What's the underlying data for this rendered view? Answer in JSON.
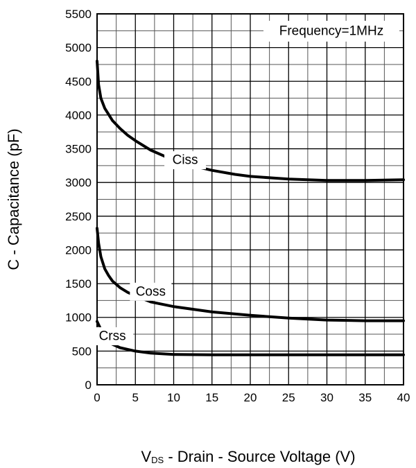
{
  "chart_data": {
    "type": "line",
    "annotation": "Frequency=1MHz",
    "xlabel_prefix": "V",
    "xlabel_subscript": "DS",
    "xlabel_rest": " - Drain - Source Voltage (V)",
    "ylabel": "C - Capacitance (pF)",
    "xlim": [
      0,
      40
    ],
    "ylim": [
      0,
      5500
    ],
    "xticks": [
      0,
      5,
      10,
      15,
      20,
      25,
      30,
      35,
      40
    ],
    "yticks": [
      0,
      500,
      1000,
      1500,
      2000,
      2500,
      3000,
      3500,
      4000,
      4500,
      5000,
      5500
    ],
    "grid": true,
    "series": [
      {
        "name": "Ciss",
        "label_x": 11.5,
        "label_y": 3330,
        "x": [
          0,
          0.2,
          0.5,
          1,
          2,
          3,
          4,
          5,
          7,
          10,
          12,
          15,
          18,
          20,
          25,
          30,
          35,
          40
        ],
        "y": [
          4800,
          4450,
          4250,
          4100,
          3920,
          3800,
          3700,
          3620,
          3480,
          3330,
          3260,
          3180,
          3120,
          3090,
          3050,
          3030,
          3030,
          3040
        ]
      },
      {
        "name": "Coss",
        "label_x": 7.0,
        "label_y": 1380,
        "x": [
          0,
          0.2,
          0.5,
          1,
          1.5,
          2,
          3,
          4,
          5,
          7,
          10,
          15,
          20,
          25,
          30,
          35,
          40
        ],
        "y": [
          2320,
          2100,
          1900,
          1720,
          1620,
          1540,
          1440,
          1370,
          1320,
          1230,
          1160,
          1080,
          1030,
          990,
          960,
          950,
          950
        ]
      },
      {
        "name": "Crss",
        "label_x": 2.0,
        "label_y": 720,
        "x": [
          0,
          0.5,
          1,
          1.5,
          2,
          3,
          5,
          7,
          10,
          15,
          20,
          25,
          30,
          35,
          40
        ],
        "y": [
          940,
          820,
          720,
          640,
          600,
          550,
          500,
          470,
          450,
          445,
          445,
          445,
          445,
          445,
          445
        ]
      }
    ]
  }
}
